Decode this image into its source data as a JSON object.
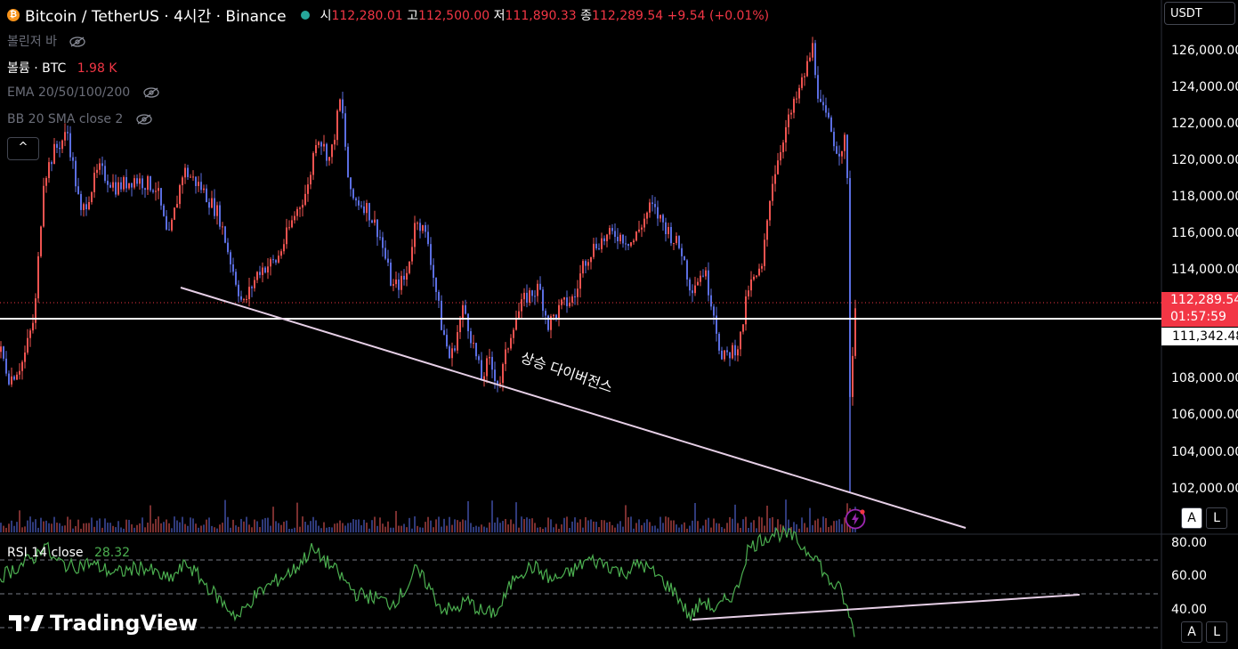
{
  "header": {
    "symbol": "Bitcoin / TetherUS · 4시간 · Binance",
    "open_label": "시",
    "open": "112,280.01",
    "high_label": "고",
    "high": "112,500.00",
    "low_label": "저",
    "low": "111,890.33",
    "close_label": "종",
    "close": "112,289.54",
    "change": "+9.54 (+0.01%)"
  },
  "legend": {
    "bollinger": "볼린저 바",
    "volume_label": "볼륨 · BTC",
    "volume_value": "1.98 K",
    "ema": "EMA 20/50/100/200",
    "bb": "BB 20 SMA close 2",
    "collapse": "^"
  },
  "currency": "USDT",
  "price_axis": [
    "126,000.00",
    "124,000.00",
    "122,000.00",
    "120,000.00",
    "118,000.00",
    "116,000.00",
    "114,000.00",
    "108,000.00",
    "106,000.00",
    "104,000.00",
    "102,000.00"
  ],
  "last_price": {
    "price": "112,289.54",
    "countdown": "01:57:59"
  },
  "level_price": "111,342.48",
  "annotation": "상승 다이버전스",
  "rsi": {
    "label": "RSI 14 close",
    "value": "28.32",
    "axis": [
      "80.00",
      "60.00",
      "40.00"
    ],
    "levels": [
      70,
      50,
      30
    ]
  },
  "scale_buttons": {
    "auto": "A",
    "log": "L"
  },
  "logo": "TradingView",
  "colors": {
    "up": "#ef5350",
    "down": "#5b6ee1",
    "rsi": "#4caf50",
    "trend": "#e6cfe6",
    "level": "#ffffff"
  },
  "chart_data": {
    "type": "candlestick",
    "timeframe": "4시간",
    "ylim": [
      100500,
      127500
    ],
    "path_keys": [
      [
        0,
        109500
      ],
      [
        10,
        108000
      ],
      [
        25,
        109000
      ],
      [
        38,
        111500
      ],
      [
        48,
        119000
      ],
      [
        60,
        120500
      ],
      [
        75,
        121500
      ],
      [
        90,
        117000
      ],
      [
        110,
        119500
      ],
      [
        130,
        118500
      ],
      [
        150,
        119000
      ],
      [
        175,
        118500
      ],
      [
        188,
        115500
      ],
      [
        205,
        119500
      ],
      [
        225,
        118500
      ],
      [
        245,
        117000
      ],
      [
        258,
        114500
      ],
      [
        272,
        112000
      ],
      [
        290,
        114000
      ],
      [
        310,
        114500
      ],
      [
        330,
        117000
      ],
      [
        345,
        118500
      ],
      [
        355,
        121500
      ],
      [
        370,
        120000
      ],
      [
        382,
        123500
      ],
      [
        392,
        118000
      ],
      [
        410,
        117500
      ],
      [
        425,
        116000
      ],
      [
        440,
        113000
      ],
      [
        455,
        113500
      ],
      [
        467,
        117000
      ],
      [
        480,
        115500
      ],
      [
        495,
        111000
      ],
      [
        505,
        109000
      ],
      [
        520,
        112000
      ],
      [
        530,
        110000
      ],
      [
        540,
        108000
      ],
      [
        548,
        109000
      ],
      [
        560,
        107700
      ],
      [
        575,
        111000
      ],
      [
        590,
        112500
      ],
      [
        605,
        113000
      ],
      [
        615,
        111000
      ],
      [
        630,
        112000
      ],
      [
        645,
        112500
      ],
      [
        655,
        114500
      ],
      [
        670,
        115500
      ],
      [
        690,
        116000
      ],
      [
        710,
        115500
      ],
      [
        730,
        117500
      ],
      [
        745,
        116500
      ],
      [
        765,
        115000
      ],
      [
        775,
        113000
      ],
      [
        790,
        114000
      ],
      [
        800,
        112000
      ],
      [
        810,
        109000
      ],
      [
        830,
        110000
      ],
      [
        840,
        113000
      ],
      [
        855,
        114000
      ],
      [
        865,
        118500
      ],
      [
        880,
        121500
      ],
      [
        895,
        123500
      ],
      [
        905,
        125000
      ],
      [
        912,
        126200
      ],
      [
        920,
        123000
      ],
      [
        930,
        122000
      ],
      [
        940,
        120500
      ],
      [
        948,
        121000
      ],
      [
        952,
        118000
      ],
      [
        955,
        102000
      ],
      [
        958,
        113000
      ],
      [
        960,
        112300
      ]
    ],
    "rsi_keys": [
      [
        0,
        60
      ],
      [
        20,
        66
      ],
      [
        40,
        72
      ],
      [
        50,
        80
      ],
      [
        60,
        70
      ],
      [
        80,
        66
      ],
      [
        100,
        68
      ],
      [
        130,
        62
      ],
      [
        160,
        66
      ],
      [
        190,
        58
      ],
      [
        210,
        68
      ],
      [
        230,
        56
      ],
      [
        255,
        42
      ],
      [
        268,
        36
      ],
      [
        285,
        48
      ],
      [
        305,
        56
      ],
      [
        330,
        64
      ],
      [
        350,
        76
      ],
      [
        365,
        70
      ],
      [
        380,
        62
      ],
      [
        400,
        50
      ],
      [
        420,
        48
      ],
      [
        440,
        44
      ],
      [
        455,
        52
      ],
      [
        467,
        64
      ],
      [
        480,
        56
      ],
      [
        495,
        42
      ],
      [
        510,
        40
      ],
      [
        525,
        46
      ],
      [
        545,
        38
      ],
      [
        560,
        40
      ],
      [
        580,
        62
      ],
      [
        600,
        66
      ],
      [
        620,
        58
      ],
      [
        640,
        62
      ],
      [
        660,
        70
      ],
      [
        680,
        68
      ],
      [
        700,
        62
      ],
      [
        720,
        68
      ],
      [
        740,
        60
      ],
      [
        760,
        50
      ],
      [
        775,
        36
      ],
      [
        790,
        46
      ],
      [
        805,
        40
      ],
      [
        815,
        46
      ],
      [
        828,
        52
      ],
      [
        840,
        76
      ],
      [
        855,
        82
      ],
      [
        870,
        86
      ],
      [
        890,
        84
      ],
      [
        905,
        76
      ],
      [
        915,
        74
      ],
      [
        930,
        58
      ],
      [
        945,
        52
      ],
      [
        952,
        40
      ],
      [
        957,
        32
      ],
      [
        960,
        28.3
      ]
    ]
  }
}
